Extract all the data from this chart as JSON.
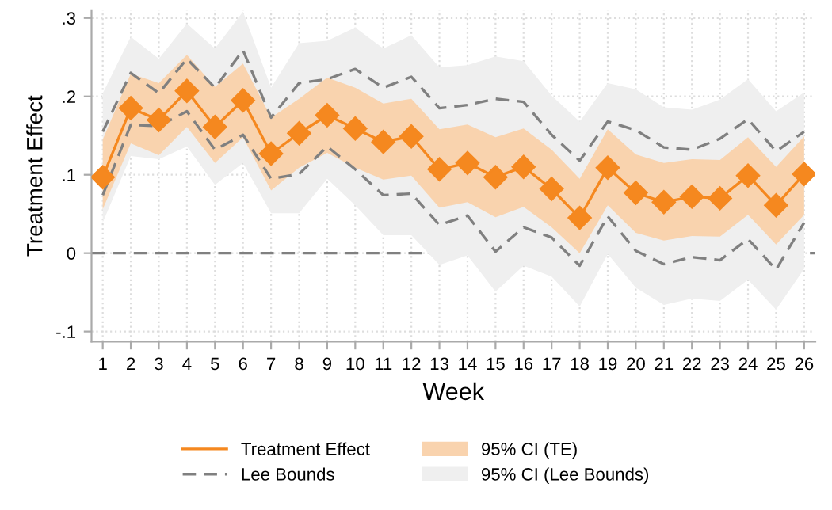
{
  "chart_data": {
    "type": "line",
    "xlabel": "Week",
    "ylabel": "Treatment Effect",
    "x": [
      1,
      2,
      3,
      4,
      5,
      6,
      7,
      8,
      9,
      10,
      11,
      12,
      13,
      14,
      15,
      16,
      17,
      18,
      19,
      20,
      21,
      22,
      23,
      24,
      25,
      26
    ],
    "xlim": [
      0.6,
      26.4
    ],
    "xticks": [
      1,
      2,
      3,
      4,
      5,
      6,
      7,
      8,
      9,
      10,
      11,
      12,
      13,
      14,
      15,
      16,
      17,
      18,
      19,
      20,
      21,
      22,
      23,
      24,
      25,
      26
    ],
    "ylim": [
      -0.113,
      0.31
    ],
    "yticks": [
      {
        "value": -0.1,
        "label": "-.1"
      },
      0,
      {
        "value": 0.1,
        "label": ".1"
      },
      {
        "value": 0.2,
        "label": ".2"
      },
      {
        "value": 0.3,
        "label": ".3"
      }
    ],
    "grid": true,
    "legend": "bottom",
    "ref_lines": [
      {
        "axis": "y",
        "value": 0,
        "color": "#808080",
        "line_style": "dashed"
      }
    ],
    "series": [
      {
        "name": "95% CI (Lee Bounds)",
        "color": "#efefef",
        "values": [
          null,
          null,
          null,
          null,
          null,
          null,
          null,
          null,
          null,
          null,
          null,
          null,
          null,
          null,
          null,
          null,
          null,
          null,
          null,
          null,
          null,
          null,
          null,
          null,
          null,
          null
        ],
        "lower": [
          0.039,
          0.124,
          0.12,
          0.136,
          0.087,
          0.115,
          0.051,
          0.051,
          0.095,
          0.061,
          0.023,
          0.023,
          -0.015,
          -0.003,
          -0.049,
          -0.016,
          -0.03,
          -0.068,
          -0.001,
          -0.044,
          -0.066,
          -0.058,
          -0.061,
          -0.034,
          -0.072,
          -0.02
        ],
        "upper": [
          0.204,
          0.276,
          0.248,
          0.293,
          0.261,
          0.308,
          0.211,
          0.268,
          0.271,
          0.288,
          0.261,
          0.278,
          0.237,
          0.24,
          0.251,
          0.245,
          0.201,
          0.168,
          0.217,
          0.209,
          0.186,
          0.183,
          0.196,
          0.222,
          0.181,
          0.205
        ]
      },
      {
        "name": "95% CI (TE)",
        "color": "#f9d3ae",
        "values": [
          null,
          null,
          null,
          null,
          null,
          null,
          null,
          null,
          null,
          null,
          null,
          null,
          null,
          null,
          null,
          null,
          null,
          null,
          null,
          null,
          null,
          null,
          null,
          null,
          null,
          null
        ],
        "lower": [
          0.056,
          0.14,
          0.125,
          0.161,
          0.115,
          0.148,
          0.08,
          0.109,
          0.128,
          0.109,
          0.094,
          0.099,
          0.058,
          0.065,
          0.046,
          0.059,
          0.033,
          0.0,
          0.061,
          0.026,
          0.016,
          0.022,
          0.021,
          0.049,
          0.011,
          0.049
        ],
        "upper": [
          0.145,
          0.229,
          0.217,
          0.253,
          0.212,
          0.242,
          0.173,
          0.197,
          0.224,
          0.211,
          0.191,
          0.197,
          0.158,
          0.164,
          0.148,
          0.159,
          0.132,
          0.095,
          0.158,
          0.126,
          0.115,
          0.12,
          0.119,
          0.148,
          0.11,
          0.149
        ]
      },
      {
        "name": "Lee Bounds",
        "color": "#808080",
        "line_style": "dashed",
        "values": [
          0.155,
          0.23,
          0.204,
          0.248,
          0.211,
          0.259,
          0.173,
          0.217,
          0.222,
          0.235,
          0.211,
          0.225,
          0.185,
          0.189,
          0.197,
          0.193,
          0.151,
          0.118,
          0.168,
          0.157,
          0.135,
          0.132,
          0.146,
          0.171,
          0.13,
          0.155
        ]
      },
      {
        "color": "#808080",
        "line_style": "dashed",
        "values": [
          0.074,
          0.164,
          0.162,
          0.181,
          0.132,
          0.151,
          0.095,
          0.101,
          0.136,
          0.107,
          0.074,
          0.076,
          0.036,
          0.048,
          0.002,
          0.033,
          0.02,
          -0.016,
          0.047,
          0.003,
          -0.014,
          -0.005,
          -0.009,
          0.018,
          -0.021,
          0.039
        ]
      },
      {
        "name": "Treatment Effect",
        "color": "#f5881f",
        "marker": "diamond",
        "line_style": "solid",
        "values": [
          0.097,
          0.185,
          0.17,
          0.207,
          0.161,
          0.195,
          0.127,
          0.153,
          0.176,
          0.159,
          0.142,
          0.149,
          0.107,
          0.115,
          0.097,
          0.11,
          0.082,
          0.045,
          0.109,
          0.077,
          0.065,
          0.072,
          0.07,
          0.099,
          0.061,
          0.101
        ]
      }
    ]
  }
}
